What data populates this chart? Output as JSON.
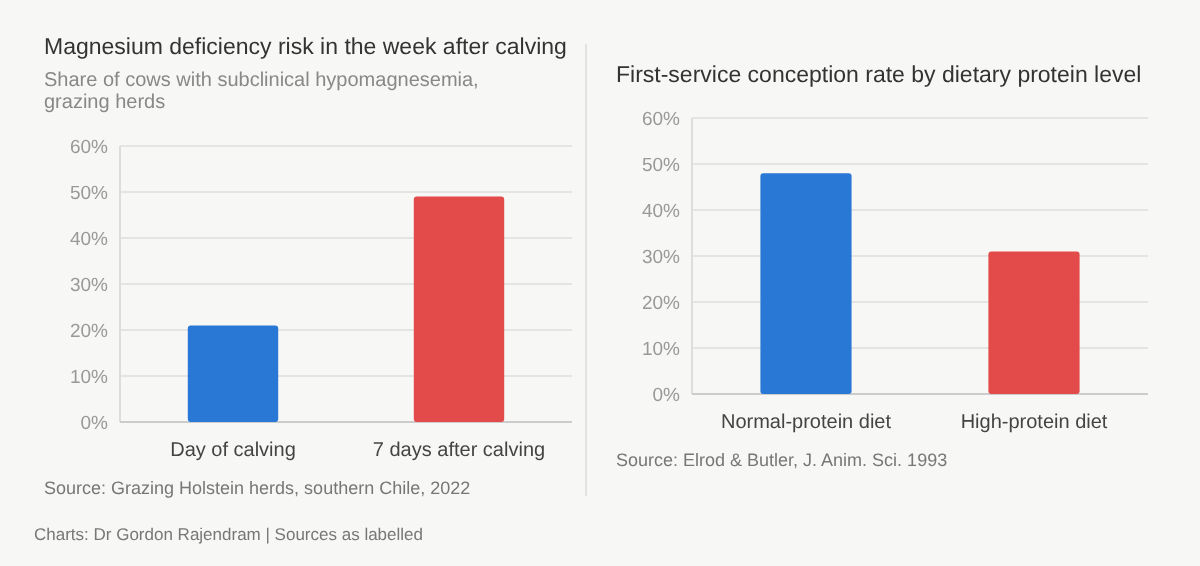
{
  "chart_data": [
    {
      "type": "bar",
      "title": "Magnesium deficiency risk in the week after calving",
      "subtitle": "Share of cows with subclinical hypomagnesemia, grazing herds",
      "categories": [
        "Day of calving",
        "7 days after calving"
      ],
      "values": [
        21,
        49
      ],
      "colors": [
        "#2a78d6",
        "#e34a4a"
      ],
      "ylim": [
        0,
        60
      ],
      "yticks": [
        {
          "value": 0,
          "label": "0%"
        },
        {
          "value": 10,
          "label": "10%"
        },
        {
          "value": 20,
          "label": "20%"
        },
        {
          "value": 30,
          "label": "30%"
        },
        {
          "value": 40,
          "label": "40%"
        },
        {
          "value": 50,
          "label": "50%"
        },
        {
          "value": 60,
          "label": "60%"
        }
      ],
      "grid": "y",
      "annotations": [
        "Source: Grazing Holstein herds, southern Chile, 2022",
        "Charts: Dr Gordon Rajendram  |  Sources as labelled"
      ]
    },
    {
      "type": "bar",
      "title": "First-service conception rate by dietary protein level",
      "categories": [
        "Normal-protein diet",
        "High-protein diet"
      ],
      "values": [
        48,
        31
      ],
      "colors": [
        "#2a78d6",
        "#e34a4a"
      ],
      "ylim": [
        0,
        60
      ],
      "yticks": [
        {
          "value": 0,
          "label": "0%"
        },
        {
          "value": 10,
          "label": "10%"
        },
        {
          "value": 20,
          "label": "20%"
        },
        {
          "value": 30,
          "label": "30%"
        },
        {
          "value": 40,
          "label": "40%"
        },
        {
          "value": 50,
          "label": "50%"
        },
        {
          "value": 60,
          "label": "60%"
        }
      ],
      "grid": "y",
      "annotations": [
        "Source: Elrod & Butler, J. Anim. Sci. 1993"
      ]
    }
  ]
}
